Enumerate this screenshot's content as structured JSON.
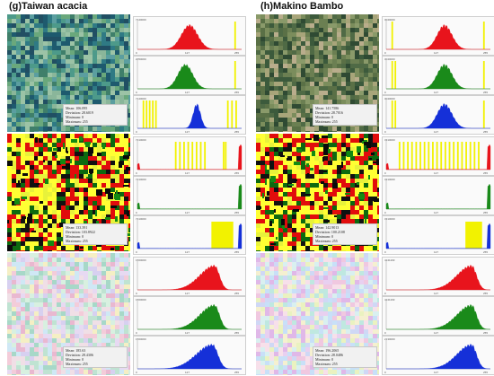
{
  "panels": [
    {
      "title": "(g)Taiwan acacia",
      "stats": [
        {
          "mean_label": "Mean: 106.095",
          "dev_label": "Deviation: 28.6019",
          "min_label": "Minimum: 0",
          "max_label": "Maximum: 255"
        },
        {
          "mean_label": "Mean: 133.391",
          "dev_label": "Deviation: 103.8922",
          "min_label": "Minimum: 0",
          "max_label": "Maximum: 255"
        },
        {
          "mean_label": "Mean: 185.63",
          "dev_label": "Deviation: 28.4306",
          "min_label": "Minimum: 0",
          "max_label": "Maximum: 255"
        }
      ],
      "hist_ymax": [
        "7140000",
        "2050000",
        "7140000",
        "7210000",
        "7210000",
        "7210000",
        "1560000",
        "1560000",
        "1560000"
      ]
    },
    {
      "title": "(h)Makino Bambo",
      "stats": [
        {
          "mean_label": "Mean: 141.7586",
          "dev_label": "Deviation: 28.7016",
          "min_label": "Minimum: 0",
          "max_label": "Maximum: 255"
        },
        {
          "mean_label": "Mean: 142.9013",
          "dev_label": "Deviation: 100.2108",
          "min_label": "Minimum: 0",
          "max_label": "Maximum: 255"
        },
        {
          "mean_label": "Mean: 196.2065",
          "dev_label": "Deviation: 28.0486",
          "min_label": "Minimum: 0",
          "max_label": "Maximum: 255"
        }
      ],
      "hist_ymax": [
        "3040000",
        "3040000",
        "3040000",
        "3310000",
        "3310000",
        "3310000",
        "4241193",
        "4241193",
        "2130000"
      ]
    }
  ],
  "hist_x_ticks": [
    "0",
    "127",
    "255"
  ],
  "colors": {
    "red": "#e8141c",
    "green": "#1a8a1a",
    "blue": "#1530d8",
    "yellow": "#f2f200"
  }
}
